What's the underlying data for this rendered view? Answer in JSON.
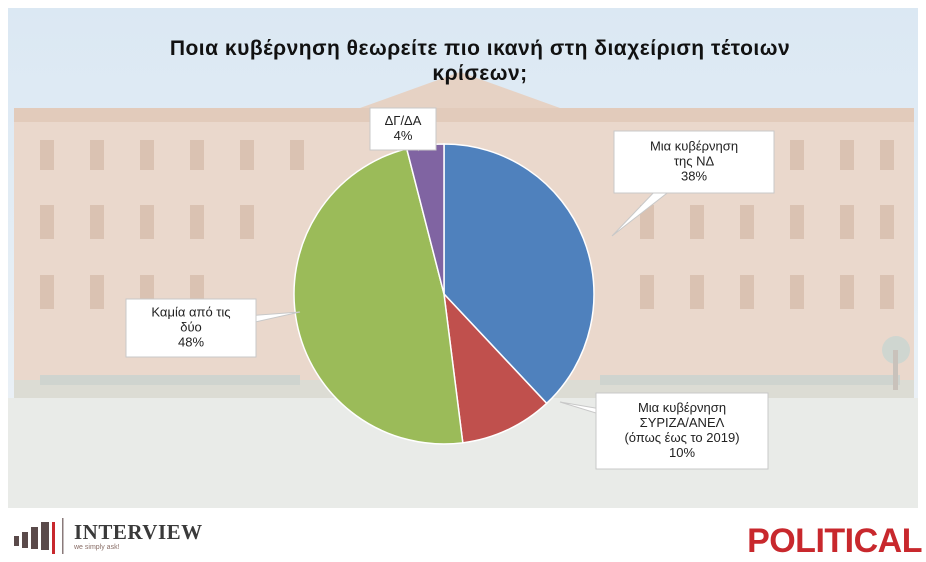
{
  "chart_data": {
    "type": "pie",
    "title": "Ποια κυβέρνηση θεωρείτε πιο ικανή στη διαχείριση τέτοιων κρίσεων;",
    "title_lines": [
      "Ποια κυβέρνηση θεωρείτε πιο ικανή στη διαχείριση τέτοιων",
      "κρίσεων;"
    ],
    "slices": [
      {
        "label_lines": [
          "Μια κυβέρνηση",
          "της ΝΔ"
        ],
        "value_label": "38%",
        "value": 38,
        "color": "#4f81bd"
      },
      {
        "label_lines": [
          "Μια κυβέρνηση",
          "ΣΥΡΙΖΑ/ΑΝΕΛ",
          "(όπως έως το 2019)"
        ],
        "value_label": "10%",
        "value": 10,
        "color": "#c0504d"
      },
      {
        "label_lines": [
          "Καμία από τις",
          "δύο"
        ],
        "value_label": "48%",
        "value": 48,
        "color": "#9bbb59"
      },
      {
        "label_lines": [
          "ΔΓ/ΔΑ"
        ],
        "value_label": "4%",
        "value": 4,
        "color": "#8064a2"
      }
    ]
  },
  "footer": {
    "pollster_name": "INTERVIEW",
    "pollster_tagline": "we simply ask!",
    "pollster_logo_color": "#5a4a4a",
    "client_name": "POLITICAL",
    "client_color": "#c8282d"
  }
}
